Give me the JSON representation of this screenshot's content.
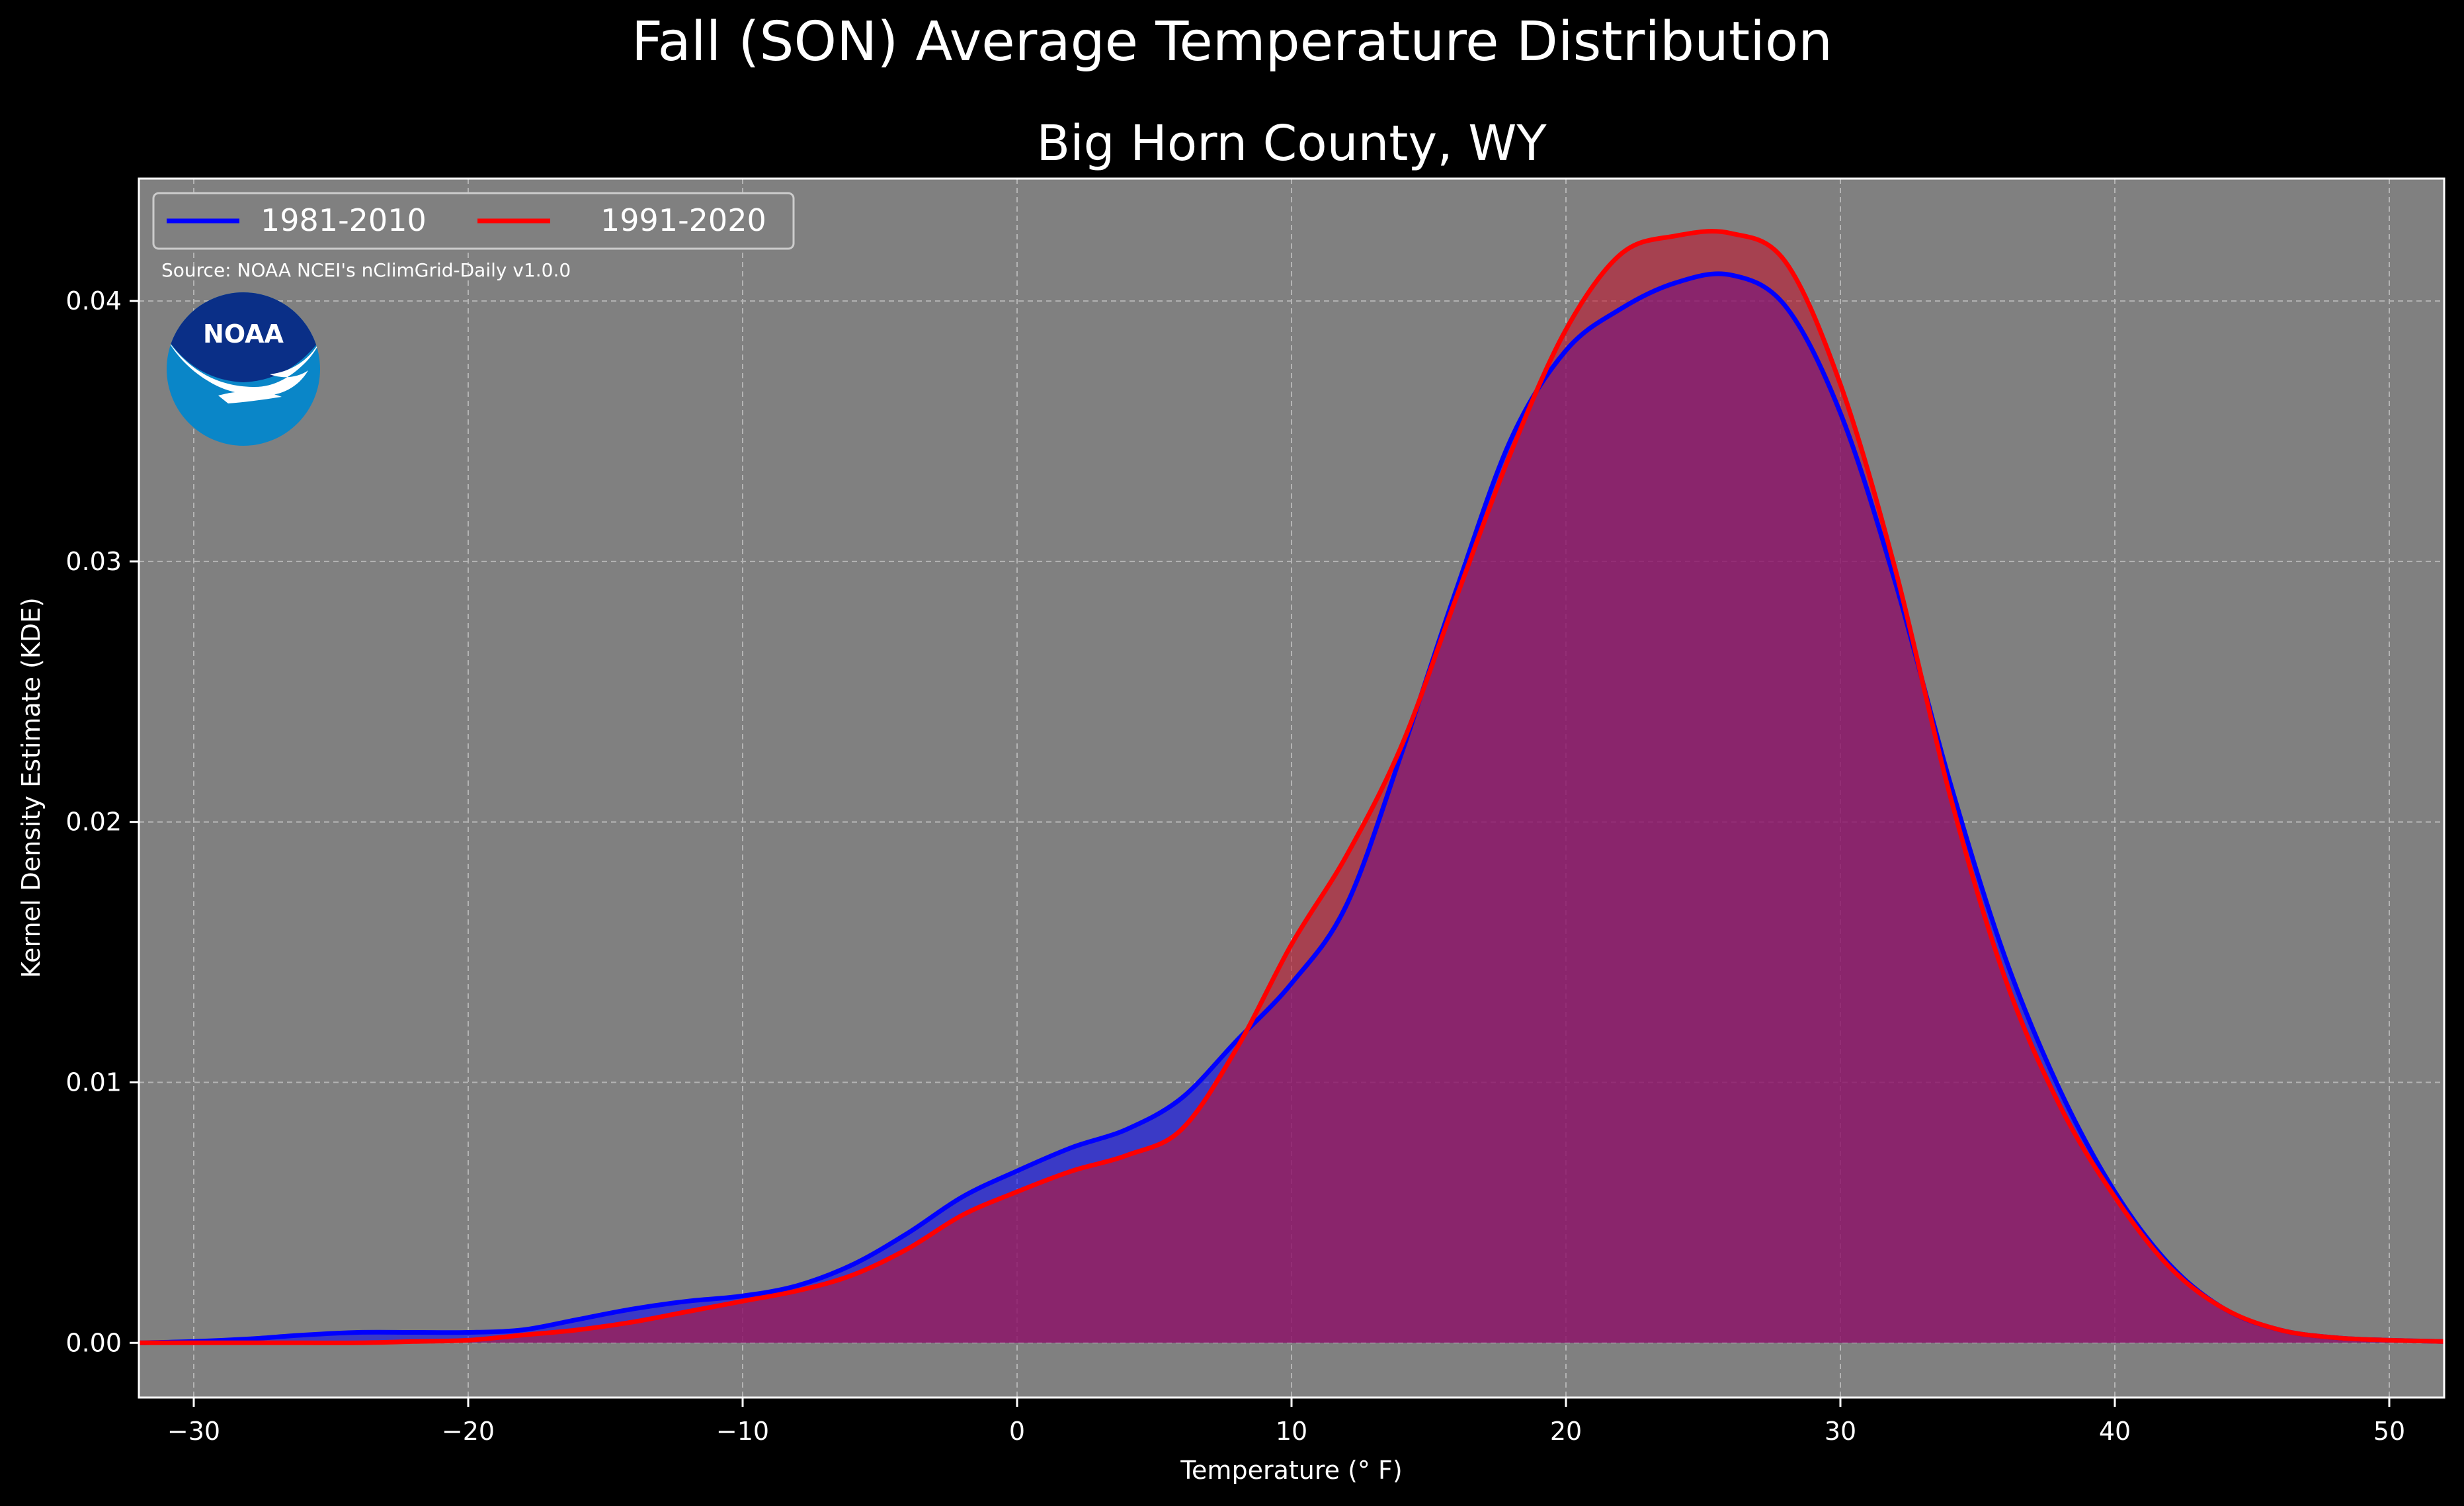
{
  "figure": {
    "suptitle": "Fall (SON) Average Temperature Distribution",
    "title": "Big Horn County, WY",
    "background": "#000000",
    "plot_background": "#808080",
    "source_note": "Source: NOAA NCEI's nClimGrid-Daily v1.0.0",
    "logo": {
      "icon": "noaa-logo",
      "text": "NOAA",
      "colors": {
        "top": "#0a2f87",
        "bottom": "#0a86c8",
        "bird": "#ffffff"
      }
    }
  },
  "chart_data": {
    "type": "area",
    "title": "Big Horn County, WY",
    "xlabel": "Temperature ($^\\circ$F)",
    "ylabel": "Kernel Density Estimate (KDE)",
    "xlim": [
      -32,
      52
    ],
    "ylim": [
      -0.0021,
      0.0447
    ],
    "grid": true,
    "legend_placement": "top-left",
    "xticks": [
      -30,
      -20,
      -10,
      0,
      10,
      20,
      30,
      40,
      50
    ],
    "xtick_labels": [
      "−30",
      "−20",
      "−10",
      "0",
      "10",
      "20",
      "30",
      "40",
      "50"
    ],
    "yticks": [
      0.0,
      0.01,
      0.02,
      0.03,
      0.04
    ],
    "ytick_labels": [
      "0.00",
      "0.01",
      "0.02",
      "0.03",
      "0.04"
    ],
    "x": [
      -32,
      -30,
      -28,
      -26,
      -24,
      -22,
      -20,
      -18,
      -16,
      -14,
      -12,
      -10,
      -8,
      -6,
      -4,
      -2,
      0,
      2,
      4,
      6,
      8,
      10,
      12,
      14,
      16,
      18,
      20,
      22,
      24,
      26,
      28,
      30,
      32,
      34,
      36,
      38,
      40,
      42,
      44,
      46,
      48,
      50,
      52
    ],
    "series": [
      {
        "name": "1981-2010",
        "color": "#0000ff",
        "fill": "#0000ff",
        "values": [
          0.0,
          5e-05,
          0.00015,
          0.0003,
          0.0004,
          0.0004,
          0.0004,
          0.0005,
          0.0009,
          0.0013,
          0.0016,
          0.0018,
          0.0022,
          0.003,
          0.0042,
          0.0056,
          0.0066,
          0.0075,
          0.0082,
          0.0094,
          0.0116,
          0.0138,
          0.0168,
          0.0226,
          0.0289,
          0.0347,
          0.0381,
          0.0397,
          0.0407,
          0.041,
          0.0398,
          0.0357,
          0.0292,
          0.0215,
          0.0148,
          0.0097,
          0.0058,
          0.003,
          0.0013,
          0.0005,
          0.0002,
          0.0001,
          5e-05
        ]
      },
      {
        "name": "1991-2020",
        "color": "#ff0000",
        "fill": "#c01830",
        "values": [
          0.0,
          0.0,
          0.0,
          0.0,
          0.0,
          5e-05,
          0.0001,
          0.0003,
          0.0005,
          0.0008,
          0.0012,
          0.0016,
          0.002,
          0.0026,
          0.0036,
          0.0049,
          0.0058,
          0.0066,
          0.0072,
          0.0082,
          0.0113,
          0.0153,
          0.0187,
          0.0229,
          0.0286,
          0.0342,
          0.0389,
          0.0418,
          0.0425,
          0.0426,
          0.0415,
          0.0368,
          0.0297,
          0.021,
          0.014,
          0.0091,
          0.0056,
          0.0029,
          0.0013,
          0.0005,
          0.0002,
          0.0001,
          5e-05
        ]
      }
    ]
  }
}
